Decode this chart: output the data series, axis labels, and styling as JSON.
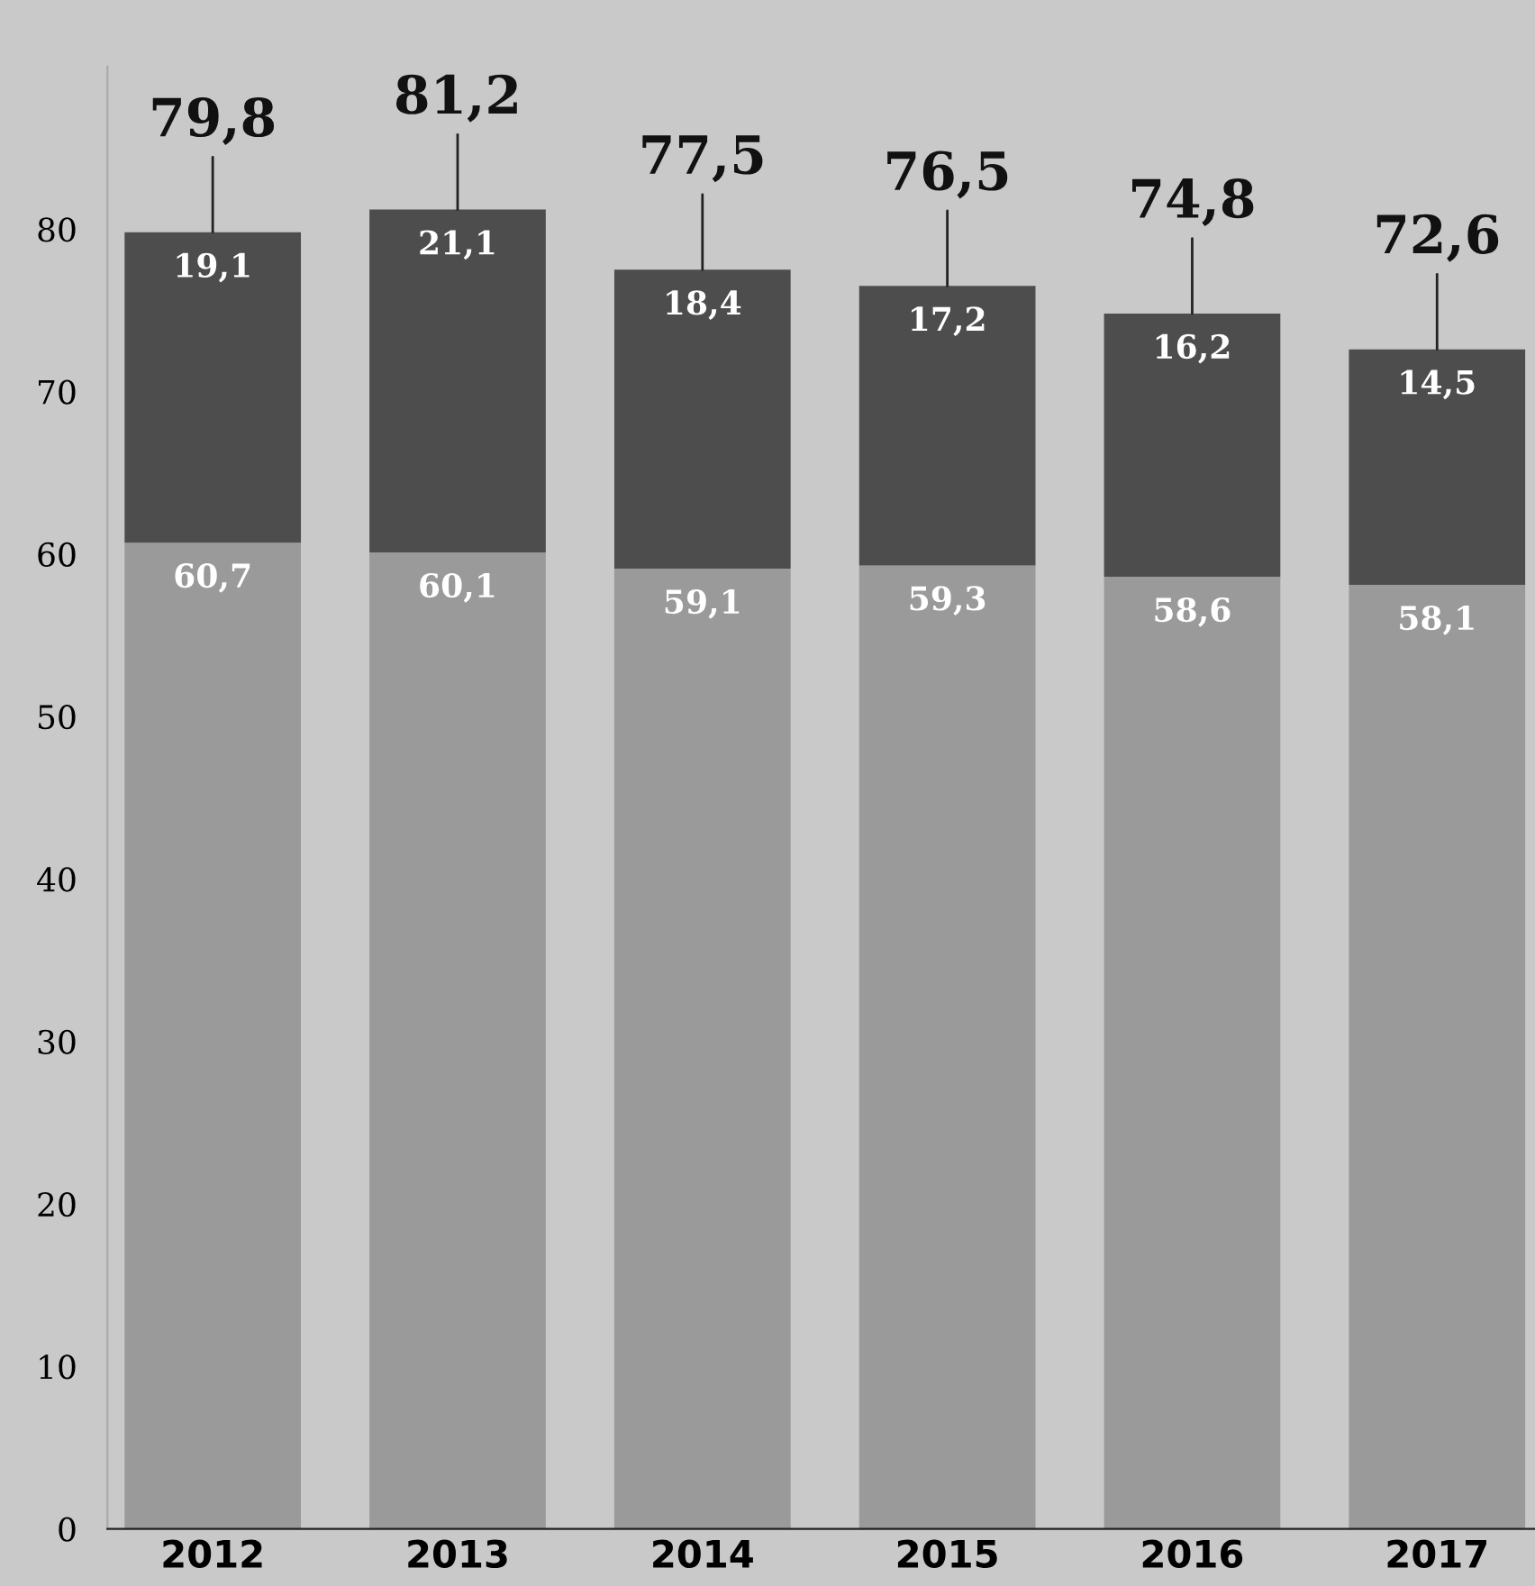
{
  "chart_data": {
    "type": "bar",
    "stacked": true,
    "categories": [
      "2012",
      "2013",
      "2014",
      "2015",
      "2016",
      "2017"
    ],
    "series": [
      {
        "color": "#9a9a9a",
        "values": [
          60.7,
          60.1,
          59.1,
          59.3,
          58.6,
          58.1
        ],
        "value_labels": [
          "60,7",
          "60,1",
          "59,1",
          "59,3",
          "58,6",
          "58,1"
        ]
      },
      {
        "color": "#4d4d4d",
        "values": [
          19.1,
          21.1,
          18.4,
          17.2,
          16.2,
          14.5
        ],
        "value_labels": [
          "19,1",
          "21,1",
          "18,4",
          "17,2",
          "16,2",
          "14,5"
        ]
      }
    ],
    "totals": [
      "79,8",
      "81,2",
      "77,5",
      "76,5",
      "74,8",
      "72,6"
    ],
    "ylim": [
      0,
      90
    ],
    "yticks": [
      0,
      10,
      20,
      30,
      40,
      50,
      60,
      70,
      80
    ],
    "grid": false,
    "legend": false
  }
}
